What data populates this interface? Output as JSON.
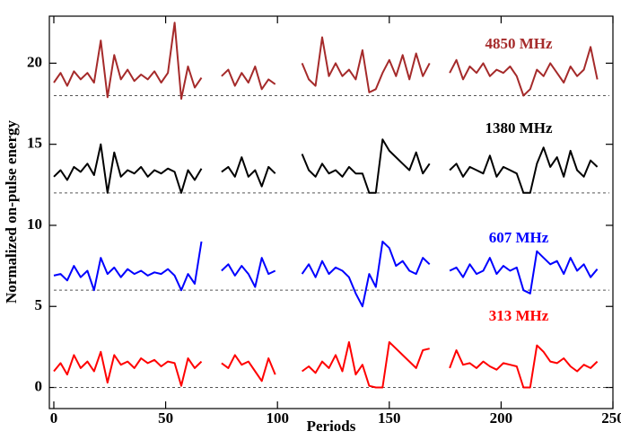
{
  "chart_data": {
    "type": "line",
    "xlabel": "Periods",
    "ylabel": "Normalized on-pulse energy",
    "xlim": [
      -2,
      250
    ],
    "ylim": [
      -1.3,
      22.9
    ],
    "xticks": [
      0,
      50,
      100,
      150,
      200,
      250
    ],
    "yticks": [
      0,
      5,
      10,
      15,
      20
    ],
    "baselines": [
      0,
      6,
      12,
      18
    ],
    "x": [
      0,
      3,
      6,
      9,
      12,
      15,
      18,
      21,
      24,
      27,
      30,
      33,
      36,
      39,
      42,
      45,
      48,
      51,
      54,
      57,
      60,
      63,
      66,
      69,
      72,
      75,
      78,
      81,
      84,
      87,
      90,
      93,
      96,
      99,
      102,
      105,
      108,
      111,
      114,
      117,
      120,
      123,
      126,
      129,
      132,
      135,
      138,
      141,
      144,
      147,
      150,
      153,
      156,
      159,
      162,
      165,
      168,
      171,
      174,
      177,
      180,
      183,
      186,
      189,
      192,
      195,
      198,
      201,
      204,
      207,
      210,
      213,
      216,
      219,
      222,
      225,
      228,
      231,
      234,
      237,
      240,
      243
    ],
    "series": [
      {
        "name": "4850 MHz",
        "color": "#a52a2a",
        "values": [
          18.8,
          19.4,
          18.6,
          19.5,
          19.0,
          19.4,
          18.8,
          21.4,
          17.9,
          20.5,
          19.0,
          19.6,
          18.9,
          19.3,
          19.0,
          19.5,
          18.8,
          19.4,
          22.5,
          17.8,
          19.8,
          18.5,
          19.1,
          null,
          null,
          19.2,
          19.6,
          18.6,
          19.4,
          18.8,
          19.8,
          18.4,
          19.0,
          18.7,
          null,
          null,
          null,
          20.0,
          19.0,
          18.6,
          21.6,
          19.2,
          20.0,
          19.2,
          19.6,
          19.0,
          20.8,
          18.2,
          18.4,
          19.4,
          20.2,
          19.2,
          20.5,
          19.0,
          20.6,
          19.2,
          20.0,
          null,
          null,
          19.4,
          20.2,
          19.0,
          19.8,
          19.4,
          20.0,
          19.2,
          19.6,
          19.4,
          19.8,
          19.2,
          18.0,
          18.4,
          19.6,
          19.2,
          20.0,
          19.4,
          18.8,
          19.8,
          19.2,
          19.6,
          21.0,
          19.0
        ]
      },
      {
        "name": "1380 MHz",
        "color": "#000000",
        "values": [
          13.0,
          13.4,
          12.8,
          13.6,
          13.3,
          13.8,
          13.1,
          15.0,
          12.0,
          14.5,
          13.0,
          13.4,
          13.2,
          13.6,
          13.0,
          13.4,
          13.2,
          13.5,
          13.3,
          12.0,
          13.4,
          12.8,
          13.5,
          null,
          null,
          13.3,
          13.6,
          13.0,
          14.2,
          13.0,
          13.4,
          12.4,
          13.6,
          13.2,
          null,
          null,
          null,
          14.4,
          13.4,
          13.0,
          13.8,
          13.2,
          13.4,
          13.0,
          13.6,
          13.2,
          13.2,
          12.0,
          12.0,
          15.3,
          14.6,
          14.2,
          13.8,
          13.4,
          14.5,
          13.2,
          13.8,
          null,
          null,
          13.4,
          13.8,
          13.0,
          13.6,
          13.4,
          13.2,
          14.3,
          13.0,
          13.6,
          13.4,
          13.2,
          12.0,
          12.0,
          13.8,
          14.8,
          13.6,
          14.2,
          13.0,
          14.6,
          13.4,
          13.0,
          14.0,
          13.6
        ]
      },
      {
        "name": "607 MHz",
        "color": "#0000ff",
        "values": [
          6.9,
          7.0,
          6.6,
          7.5,
          6.8,
          7.2,
          6.0,
          8.0,
          7.0,
          7.4,
          6.8,
          7.3,
          7.0,
          7.2,
          6.9,
          7.1,
          7.0,
          7.3,
          6.9,
          6.0,
          7.0,
          6.4,
          9.0,
          null,
          null,
          7.2,
          7.6,
          6.9,
          7.5,
          7.0,
          6.2,
          8.0,
          7.0,
          7.2,
          null,
          null,
          null,
          7.0,
          7.6,
          6.8,
          7.8,
          7.0,
          7.4,
          7.2,
          6.8,
          5.8,
          5.0,
          7.0,
          6.2,
          9.0,
          8.6,
          7.5,
          7.8,
          7.2,
          7.0,
          8.0,
          7.6,
          null,
          null,
          7.2,
          7.4,
          6.8,
          7.6,
          7.0,
          7.2,
          8.0,
          7.0,
          7.5,
          7.2,
          7.4,
          6.0,
          5.8,
          8.4,
          8.0,
          7.6,
          7.8,
          7.0,
          8.0,
          7.2,
          7.6,
          6.8,
          7.3
        ]
      },
      {
        "name": "313 MHz",
        "color": "#ff0000",
        "values": [
          1.0,
          1.5,
          0.8,
          2.0,
          1.2,
          1.6,
          1.0,
          2.2,
          0.3,
          2.0,
          1.4,
          1.6,
          1.2,
          1.8,
          1.5,
          1.7,
          1.3,
          1.6,
          1.5,
          0.1,
          1.8,
          1.2,
          1.6,
          null,
          null,
          1.5,
          1.2,
          2.0,
          1.4,
          1.6,
          1.0,
          0.4,
          1.8,
          0.8,
          null,
          null,
          null,
          1.0,
          1.3,
          0.9,
          1.6,
          1.2,
          2.0,
          1.0,
          2.8,
          0.8,
          1.4,
          0.1,
          0,
          0,
          2.8,
          2.4,
          2.0,
          1.6,
          1.2,
          2.3,
          2.4,
          null,
          null,
          1.2,
          2.3,
          1.4,
          1.5,
          1.2,
          1.6,
          1.3,
          1.1,
          1.5,
          1.4,
          1.3,
          0.0,
          0.0,
          2.6,
          2.2,
          1.6,
          1.5,
          1.8,
          1.3,
          1.0,
          1.4,
          1.2,
          1.6
        ]
      }
    ]
  }
}
